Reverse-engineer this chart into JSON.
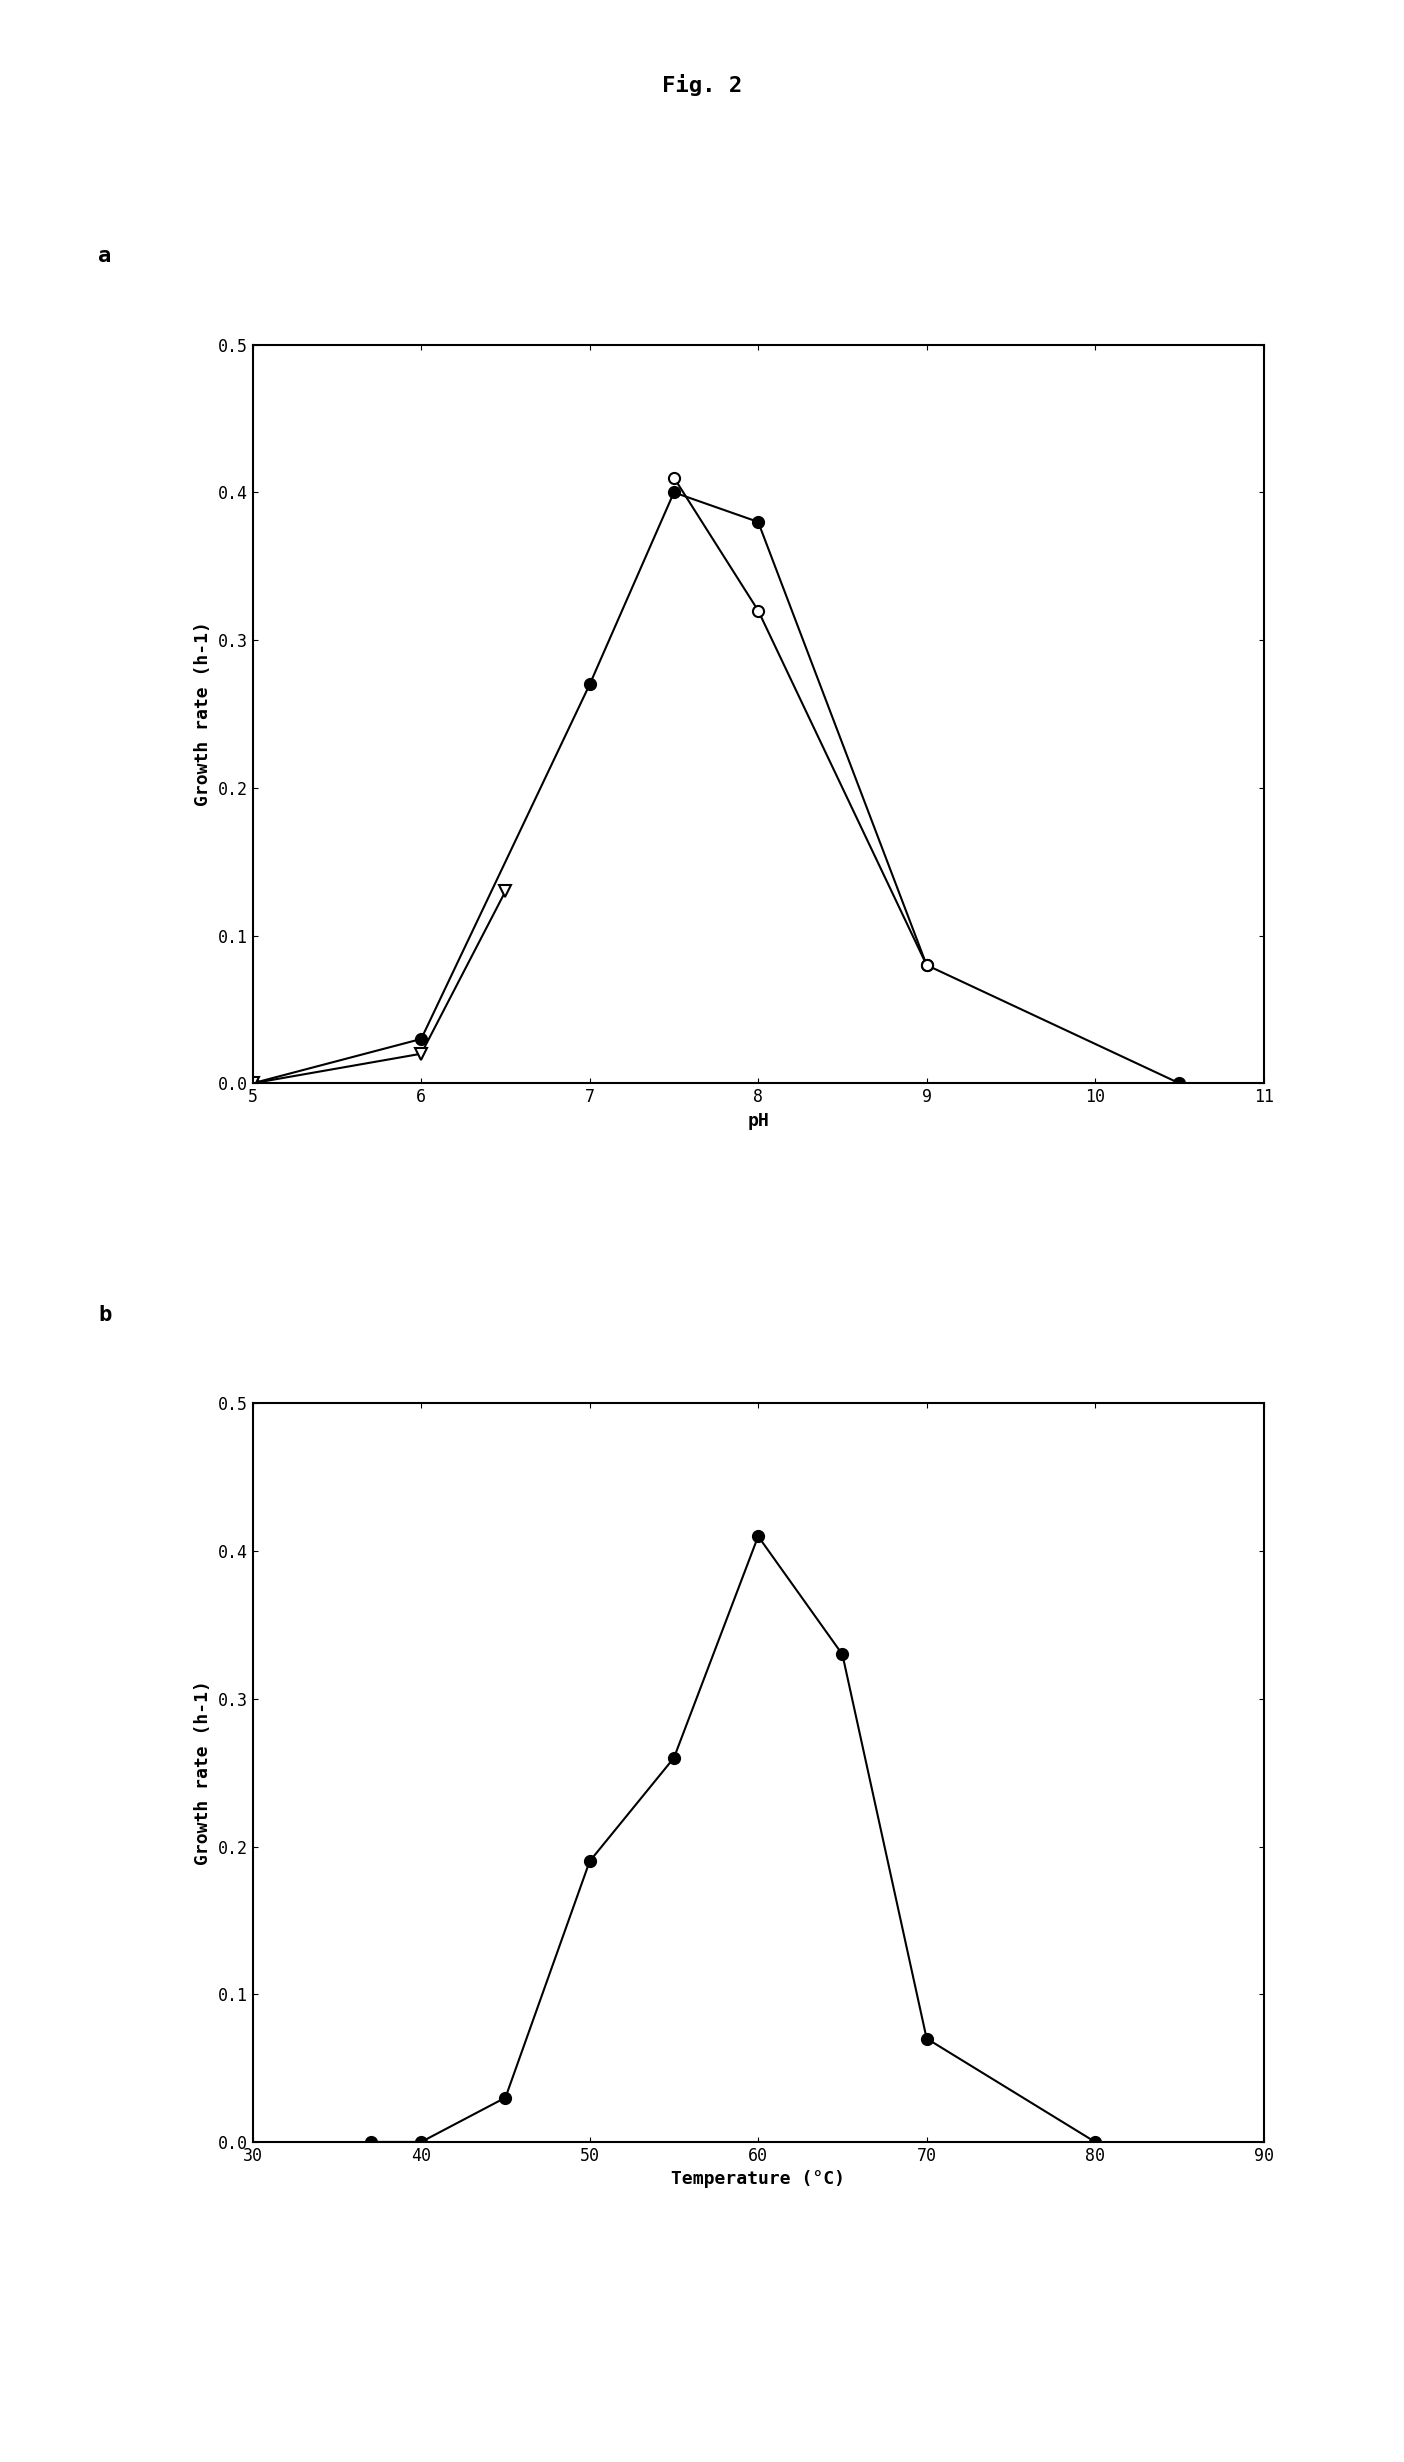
{
  "title": "Fig. 2",
  "panel_a": {
    "label": "a",
    "xlabel": "pH",
    "ylabel": "Growth rate (h-1)",
    "xlim": [
      5,
      11
    ],
    "ylim": [
      0,
      0.5
    ],
    "xticks": [
      5,
      6,
      7,
      8,
      9,
      10,
      11
    ],
    "yticks": [
      0.0,
      0.1,
      0.2,
      0.3,
      0.4,
      0.5
    ],
    "series": [
      {
        "name": "filled_circle",
        "x": [
          5.0,
          6.0,
          7.0,
          7.5,
          8.0,
          9.0,
          10.5
        ],
        "y": [
          0.0,
          0.03,
          0.27,
          0.4,
          0.38,
          0.08,
          0.0
        ],
        "marker": "o",
        "filled": true,
        "color": "black",
        "linecolor": "black"
      },
      {
        "name": "open_circle",
        "x": [
          7.5,
          8.0,
          9.0
        ],
        "y": [
          0.41,
          0.32,
          0.08
        ],
        "marker": "o",
        "filled": false,
        "color": "black",
        "linecolor": "black"
      },
      {
        "name": "open_triangle_down",
        "x": [
          5.0,
          6.0,
          6.5
        ],
        "y": [
          0.0,
          0.02,
          0.13
        ],
        "marker": "v",
        "filled": false,
        "color": "black",
        "linecolor": "black"
      }
    ]
  },
  "panel_b": {
    "label": "b",
    "xlabel": "Temperature (°C)",
    "ylabel": "Growth rate (h-1)",
    "xlim": [
      30,
      90
    ],
    "ylim": [
      0,
      0.5
    ],
    "xticks": [
      30,
      40,
      50,
      60,
      70,
      80,
      90
    ],
    "yticks": [
      0.0,
      0.1,
      0.2,
      0.3,
      0.4,
      0.5
    ],
    "series": [
      {
        "name": "filled_circle",
        "x": [
          37,
          40,
          45,
          50,
          55,
          60,
          65,
          70,
          80
        ],
        "y": [
          0.0,
          0.0,
          0.03,
          0.19,
          0.26,
          0.41,
          0.33,
          0.07,
          0.0
        ],
        "marker": "o",
        "filled": true,
        "color": "black",
        "linecolor": "black"
      }
    ]
  },
  "background_color": "#ffffff",
  "font_family": "monospace",
  "title_fontsize": 16,
  "label_fontsize": 14,
  "tick_fontsize": 12,
  "axis_label_fontsize": 13
}
